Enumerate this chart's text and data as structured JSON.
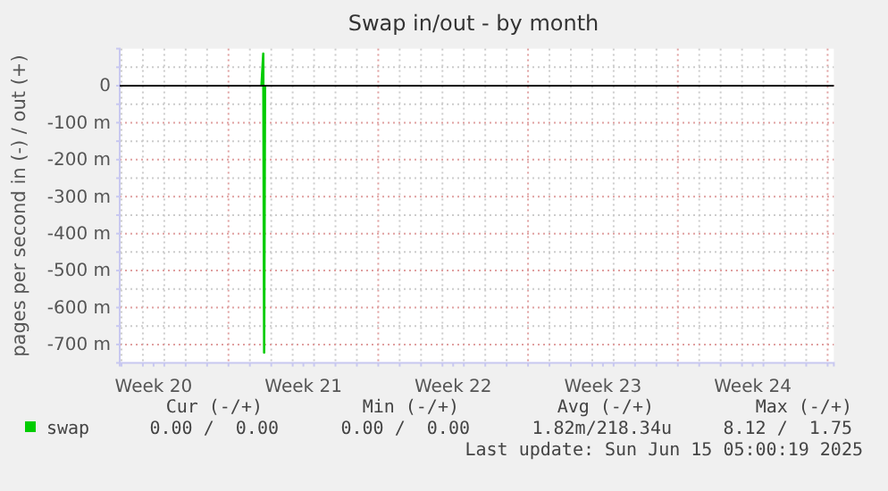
{
  "chart_data": {
    "type": "line",
    "title": "Swap in/out - by month",
    "ylabel": "pages per second in (-) / out (+)",
    "xlim": [
      "2025-05-13T22:00",
      "2025-06-16T07:00"
    ],
    "xticks": [
      {
        "value": "2025-05-14T00:00",
        "label": null
      },
      {
        "value": "2025-05-15T00:00",
        "label": null
      },
      {
        "value": "2025-05-15T12:00",
        "label": "Week 20"
      },
      {
        "value": "2025-05-16T00:00",
        "label": null
      },
      {
        "value": "2025-05-17T00:00",
        "label": null
      },
      {
        "value": "2025-05-18T00:00",
        "label": null
      },
      {
        "value": "2025-05-19T00:00",
        "label": null
      },
      {
        "value": "2025-05-20T00:00",
        "label": null
      },
      {
        "value": "2025-05-21T00:00",
        "label": null
      },
      {
        "value": "2025-05-22T00:00",
        "label": null
      },
      {
        "value": "2025-05-22T12:00",
        "label": "Week 21"
      },
      {
        "value": "2025-05-23T00:00",
        "label": null
      },
      {
        "value": "2025-05-24T00:00",
        "label": null
      },
      {
        "value": "2025-05-25T00:00",
        "label": null
      },
      {
        "value": "2025-05-26T00:00",
        "label": null
      },
      {
        "value": "2025-05-27T00:00",
        "label": null
      },
      {
        "value": "2025-05-28T00:00",
        "label": null
      },
      {
        "value": "2025-05-29T00:00",
        "label": null
      },
      {
        "value": "2025-05-29T12:00",
        "label": "Week 22"
      },
      {
        "value": "2025-05-30T00:00",
        "label": null
      },
      {
        "value": "2025-05-31T00:00",
        "label": null
      },
      {
        "value": "2025-06-01T00:00",
        "label": null
      },
      {
        "value": "2025-06-02T00:00",
        "label": null
      },
      {
        "value": "2025-06-03T00:00",
        "label": null
      },
      {
        "value": "2025-06-04T00:00",
        "label": null
      },
      {
        "value": "2025-06-05T00:00",
        "label": null
      },
      {
        "value": "2025-06-05T12:00",
        "label": "Week 23"
      },
      {
        "value": "2025-06-06T00:00",
        "label": null
      },
      {
        "value": "2025-06-07T00:00",
        "label": null
      },
      {
        "value": "2025-06-08T00:00",
        "label": null
      },
      {
        "value": "2025-06-09T00:00",
        "label": null
      },
      {
        "value": "2025-06-10T00:00",
        "label": null
      },
      {
        "value": "2025-06-11T00:00",
        "label": null
      },
      {
        "value": "2025-06-12T00:00",
        "label": null
      },
      {
        "value": "2025-06-12T12:00",
        "label": "Week 24"
      },
      {
        "value": "2025-06-13T00:00",
        "label": null
      },
      {
        "value": "2025-06-14T00:00",
        "label": null
      },
      {
        "value": "2025-06-15T00:00",
        "label": null
      },
      {
        "value": "2025-06-16T00:00",
        "label": null
      }
    ],
    "ylim": [
      -750,
      100
    ],
    "yticks": [
      {
        "value": 50,
        "label": null
      },
      {
        "value": 0,
        "label": "0"
      },
      {
        "value": -50,
        "label": null
      },
      {
        "value": -100,
        "label": "-100 m"
      },
      {
        "value": -150,
        "label": null
      },
      {
        "value": -200,
        "label": "-200 m"
      },
      {
        "value": -250,
        "label": null
      },
      {
        "value": -300,
        "label": "-300 m"
      },
      {
        "value": -350,
        "label": null
      },
      {
        "value": -400,
        "label": "-400 m"
      },
      {
        "value": -450,
        "label": null
      },
      {
        "value": -500,
        "label": "-500 m"
      },
      {
        "value": -550,
        "label": null
      },
      {
        "value": -600,
        "label": "-600 m"
      },
      {
        "value": -650,
        "label": null
      },
      {
        "value": -700,
        "label": "-700 m"
      }
    ],
    "grid": true,
    "legend": "bottom",
    "ref_lines": [
      {
        "axis": "y",
        "value": 0,
        "label": null,
        "color": "#000000"
      }
    ],
    "series": [
      {
        "name": "swap",
        "color": "#00cc00",
        "x": [
          "2025-05-20T13:00",
          "2025-05-20T15:00",
          "2025-05-20T16:00",
          "2025-05-20T17:00"
        ],
        "values": [
          0,
          87,
          -722,
          0
        ]
      }
    ],
    "annotations": [
      "Cur (-/+)",
      "Min (-/+)",
      "Avg (-/+)",
      "Max (-/+)",
      "0.00 /  0.00",
      "0.00 /  0.00",
      "1.82m/218.34u",
      "8.12 /  1.75",
      "Last update: Sun Jun 15 05:00:19 2025"
    ]
  }
}
